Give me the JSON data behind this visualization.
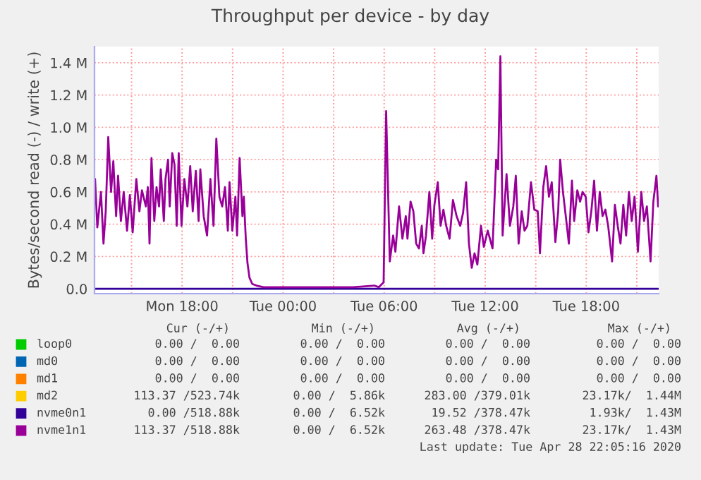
{
  "chart_data": {
    "type": "line",
    "title": "Throughput per device - by day",
    "ylabel": "Bytes/second read (-) / write (+)",
    "xlim": [
      "2020-04-27T12:48",
      "2020-04-28T22:18"
    ],
    "ylim": [
      -0.03,
      1.5
    ],
    "xticks": [
      {
        "value": "2020-04-27T15:00",
        "label": null
      },
      {
        "value": "2020-04-27T18:00",
        "label": "Mon 18:00"
      },
      {
        "value": "2020-04-27T21:00",
        "label": null
      },
      {
        "value": "2020-04-28T00:00",
        "label": "Tue 00:00"
      },
      {
        "value": "2020-04-28T03:00",
        "label": null
      },
      {
        "value": "2020-04-28T06:00",
        "label": "Tue 06:00"
      },
      {
        "value": "2020-04-28T09:00",
        "label": null
      },
      {
        "value": "2020-04-28T12:00",
        "label": "Tue 12:00"
      },
      {
        "value": "2020-04-28T15:00",
        "label": null
      },
      {
        "value": "2020-04-28T18:00",
        "label": "Tue 18:00"
      },
      {
        "value": "2020-04-28T21:00",
        "label": null
      }
    ],
    "yticks": [
      {
        "value": 0,
        "label": "0.0"
      },
      {
        "value": 0.2,
        "label": "0.2 M"
      },
      {
        "value": 0.4,
        "label": "0.4 M"
      },
      {
        "value": 0.6,
        "label": "0.6 M"
      },
      {
        "value": 0.8,
        "label": "0.8 M"
      },
      {
        "value": 1.0,
        "label": "1.0 M"
      },
      {
        "value": 1.2,
        "label": "1.2 M"
      },
      {
        "value": 1.4,
        "label": "1.4 M"
      }
    ],
    "grid": true,
    "legend": "bottom",
    "series": [
      {
        "name": "loop0",
        "color": "#00cc00"
      },
      {
        "name": "md0",
        "color": "#0066b3"
      },
      {
        "name": "md1",
        "color": "#ff8000"
      },
      {
        "name": "md2",
        "color": "#ffcc00"
      },
      {
        "name": "nvme0n1",
        "color": "#330099",
        "x": [
          "2020-04-27T12:50",
          "2020-04-28T22:16"
        ],
        "values": [
          0,
          0
        ]
      },
      {
        "name": "nvme1n1",
        "color": "#990099",
        "x": [
          "2020-04-27T12:50",
          "2020-04-27T12:58",
          "2020-04-27T13:11",
          "2020-04-27T13:20",
          "2020-04-27T13:28",
          "2020-04-27T13:37",
          "2020-04-27T13:47",
          "2020-04-27T13:55",
          "2020-04-27T14:05",
          "2020-04-27T14:12",
          "2020-04-27T14:22",
          "2020-04-27T14:32",
          "2020-04-27T14:44",
          "2020-04-27T14:54",
          "2020-04-27T15:04",
          "2020-04-27T15:17",
          "2020-04-27T15:28",
          "2020-04-27T15:37",
          "2020-04-27T15:51",
          "2020-04-27T15:58",
          "2020-04-27T16:04",
          "2020-04-27T16:11",
          "2020-04-27T16:21",
          "2020-04-27T16:29",
          "2020-04-27T16:38",
          "2020-04-27T16:44",
          "2020-04-27T16:55",
          "2020-04-27T17:01",
          "2020-04-27T17:10",
          "2020-04-27T17:16",
          "2020-04-27T17:25",
          "2020-04-27T17:33",
          "2020-04-27T17:41",
          "2020-04-27T17:48",
          "2020-04-27T17:58",
          "2020-04-27T18:08",
          "2020-04-27T18:19",
          "2020-04-27T18:29",
          "2020-04-27T18:38",
          "2020-04-27T18:49",
          "2020-04-27T18:59",
          "2020-04-27T19:05",
          "2020-04-27T19:17",
          "2020-04-27T19:29",
          "2020-04-27T19:41",
          "2020-04-27T19:52",
          "2020-04-27T20:02",
          "2020-04-27T20:13",
          "2020-04-27T20:23",
          "2020-04-27T20:33",
          "2020-04-27T20:43",
          "2020-04-27T20:49",
          "2020-04-27T20:59",
          "2020-04-27T21:10",
          "2020-04-27T21:16",
          "2020-04-27T21:25",
          "2020-04-27T21:35",
          "2020-04-27T21:40",
          "2020-04-27T21:47",
          "2020-04-27T21:53",
          "2020-04-27T22:00",
          "2020-04-27T22:10",
          "2020-04-27T22:25",
          "2020-04-27T22:50",
          "2020-04-28T04:09",
          "2020-04-28T05:25",
          "2020-04-28T05:41",
          "2020-04-28T05:58",
          "2020-04-28T06:07",
          "2020-04-28T06:20",
          "2020-04-28T06:32",
          "2020-04-28T06:40",
          "2020-04-28T06:53",
          "2020-04-28T07:05",
          "2020-04-28T07:17",
          "2020-04-28T07:23",
          "2020-04-28T07:34",
          "2020-04-28T07:44",
          "2020-04-28T07:54",
          "2020-04-28T08:04",
          "2020-04-28T08:14",
          "2020-04-28T08:20",
          "2020-04-28T08:29",
          "2020-04-28T08:41",
          "2020-04-28T08:51",
          "2020-04-28T08:59",
          "2020-04-28T09:11",
          "2020-04-28T09:21",
          "2020-04-28T09:31",
          "2020-04-28T09:41",
          "2020-04-28T09:53",
          "2020-04-28T10:05",
          "2020-04-28T10:18",
          "2020-04-28T10:31",
          "2020-04-28T10:41",
          "2020-04-28T10:52",
          "2020-04-28T11:02",
          "2020-04-28T11:12",
          "2020-04-28T11:22",
          "2020-04-28T11:32",
          "2020-04-28T11:45",
          "2020-04-28T11:55",
          "2020-04-28T12:09",
          "2020-04-28T12:26",
          "2020-04-28T12:39",
          "2020-04-28T12:46",
          "2020-04-28T12:54",
          "2020-04-28T13:02",
          "2020-04-28T13:16",
          "2020-04-28T13:28",
          "2020-04-28T13:40",
          "2020-04-28T13:49",
          "2020-04-28T13:59",
          "2020-04-28T14:10",
          "2020-04-28T14:20",
          "2020-04-28T14:30",
          "2020-04-28T14:43",
          "2020-04-28T14:55",
          "2020-04-28T15:07",
          "2020-04-28T15:15",
          "2020-04-28T15:27",
          "2020-04-28T15:37",
          "2020-04-28T15:47",
          "2020-04-28T15:57",
          "2020-04-28T16:10",
          "2020-04-28T16:20",
          "2020-04-28T16:27",
          "2020-04-28T16:37",
          "2020-04-28T16:47",
          "2020-04-28T16:58",
          "2020-04-28T17:09",
          "2020-04-28T17:17",
          "2020-04-28T17:28",
          "2020-04-28T17:38",
          "2020-04-28T17:47",
          "2020-04-28T17:58",
          "2020-04-28T18:08",
          "2020-04-28T18:18",
          "2020-04-28T18:28",
          "2020-04-28T18:38",
          "2020-04-28T18:48",
          "2020-04-28T18:58",
          "2020-04-28T19:08",
          "2020-04-28T19:18",
          "2020-04-28T19:32",
          "2020-04-28T19:42",
          "2020-04-28T19:52",
          "2020-04-28T20:02",
          "2020-04-28T20:12",
          "2020-04-28T20:22",
          "2020-04-28T20:32",
          "2020-04-28T20:42",
          "2020-04-28T20:52",
          "2020-04-28T21:04",
          "2020-04-28T21:16",
          "2020-04-28T21:26",
          "2020-04-28T21:36",
          "2020-04-28T21:49",
          "2020-04-28T21:59",
          "2020-04-28T22:10",
          "2020-04-28T22:16"
        ],
        "values": [
          0.68,
          0.38,
          0.6,
          0.28,
          0.48,
          0.94,
          0.6,
          0.79,
          0.45,
          0.7,
          0.42,
          0.6,
          0.36,
          0.58,
          0.35,
          0.68,
          0.48,
          0.61,
          0.51,
          0.63,
          0.28,
          0.81,
          0.42,
          0.63,
          0.51,
          0.74,
          0.42,
          0.68,
          0.8,
          0.51,
          0.84,
          0.77,
          0.39,
          0.84,
          0.39,
          0.68,
          0.51,
          0.76,
          0.48,
          0.73,
          0.42,
          0.74,
          0.45,
          0.33,
          0.68,
          0.39,
          0.93,
          0.57,
          0.51,
          0.63,
          0.36,
          0.66,
          0.36,
          0.57,
          0.33,
          0.81,
          0.45,
          0.57,
          0.31,
          0.16,
          0.07,
          0.03,
          0.02,
          0.01,
          0.01,
          0.02,
          0.01,
          0.04,
          1.1,
          0.17,
          0.33,
          0.23,
          0.51,
          0.31,
          0.45,
          0.31,
          0.54,
          0.48,
          0.28,
          0.25,
          0.39,
          0.22,
          0.33,
          0.6,
          0.31,
          0.52,
          0.66,
          0.39,
          0.49,
          0.39,
          0.31,
          0.55,
          0.45,
          0.39,
          0.47,
          0.66,
          0.28,
          0.13,
          0.22,
          0.15,
          0.39,
          0.26,
          0.36,
          0.25,
          0.8,
          0.74,
          1.44,
          0.33,
          0.71,
          0.39,
          0.51,
          0.7,
          0.28,
          0.48,
          0.36,
          0.39,
          0.66,
          0.49,
          0.48,
          0.22,
          0.63,
          0.76,
          0.57,
          0.66,
          0.29,
          0.48,
          0.8,
          0.6,
          0.45,
          0.28,
          0.67,
          0.42,
          0.61,
          0.54,
          0.6,
          0.57,
          0.35,
          0.48,
          0.67,
          0.36,
          0.6,
          0.45,
          0.49,
          0.39,
          0.17,
          0.52,
          0.39,
          0.28,
          0.52,
          0.33,
          0.6,
          0.42,
          0.57,
          0.23,
          0.6,
          0.42,
          0.51,
          0.17,
          0.54,
          0.7,
          0.51
        ]
      }
    ],
    "annotations": [
      "Cur (-/+)",
      "Min (-/+)",
      "Avg (-/+)",
      "Max (-/+)",
      "0.00 /  0.00",
      "0.00 /  0.00",
      "0.00 /  0.00",
      "0.00 /  0.00",
      "0.00 /  0.00",
      "0.00 /  0.00",
      "0.00 /  0.00",
      "0.00 /  0.00",
      "0.00 /  0.00",
      "0.00 /  0.00",
      "0.00 /  0.00",
      "0.00 /  0.00",
      "113.37 /523.74k",
      "0.00 /  5.86k",
      "283.00 /379.01k",
      "23.17k/  1.44M",
      "0.00 /518.88k",
      "0.00 /  6.52k",
      "19.52 /378.47k",
      "1.93k/  1.43M",
      "113.37 /518.88k",
      "0.00 /  6.52k",
      "263.48 /378.47k",
      "23.17k/  1.43M",
      "Last update: Tue Apr 28 22:05:16 2020"
    ]
  }
}
